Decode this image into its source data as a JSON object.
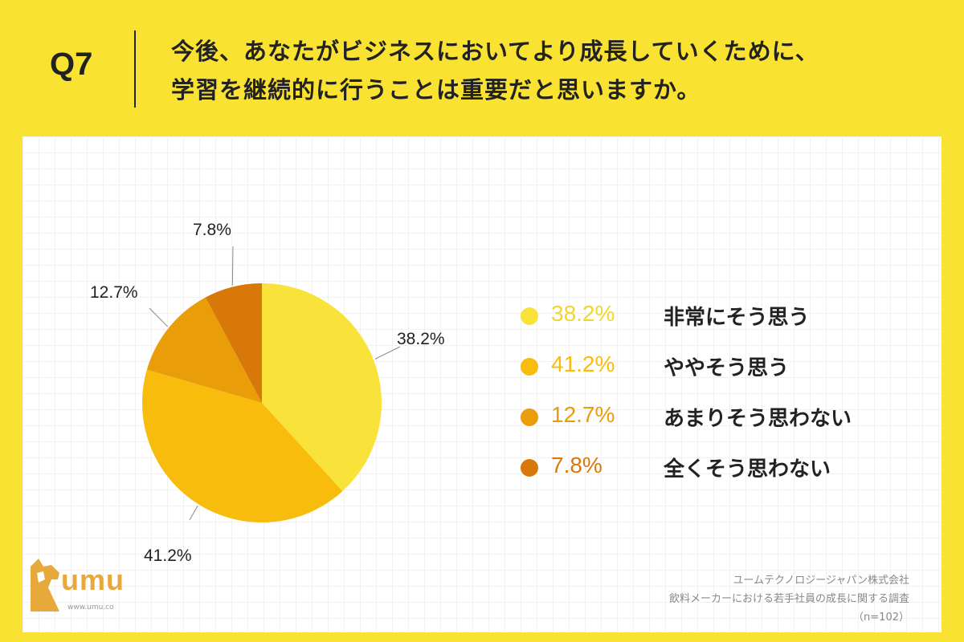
{
  "header": {
    "question_number": "Q7",
    "question_line1": "今後、あなたがビジネスにおいてより成長していくために、",
    "question_line2": "学習を継続的に行うことは重要だと思いますか。"
  },
  "chart_data": {
    "type": "pie",
    "slices": [
      {
        "label": "非常にそう思う",
        "value": 38.2,
        "display": "38.2%",
        "color": "#f9e23a"
      },
      {
        "label": "ややそう思う",
        "value": 41.2,
        "display": "41.2%",
        "color": "#f7bc0c"
      },
      {
        "label": "あまりそう思わない",
        "value": 12.7,
        "display": "12.7%",
        "color": "#e99d08"
      },
      {
        "label": "全くそう思わない",
        "value": 7.8,
        "display": "7.8%",
        "color": "#d9780a"
      }
    ],
    "start_direction": "12 o'clock",
    "direction": "clockwise",
    "legend_position": "right"
  },
  "legend_value_colors": [
    "#f3d62a",
    "#f7bc0c",
    "#e99d08",
    "#d9780a"
  ],
  "logo": {
    "word": "umu",
    "url": "www.umu.co"
  },
  "source": {
    "line1": "ユームテクノロジージャパン株式会社",
    "line2": "飲料メーカーにおける若手社員の成長に関する調査",
    "line3": "（n=102）"
  }
}
